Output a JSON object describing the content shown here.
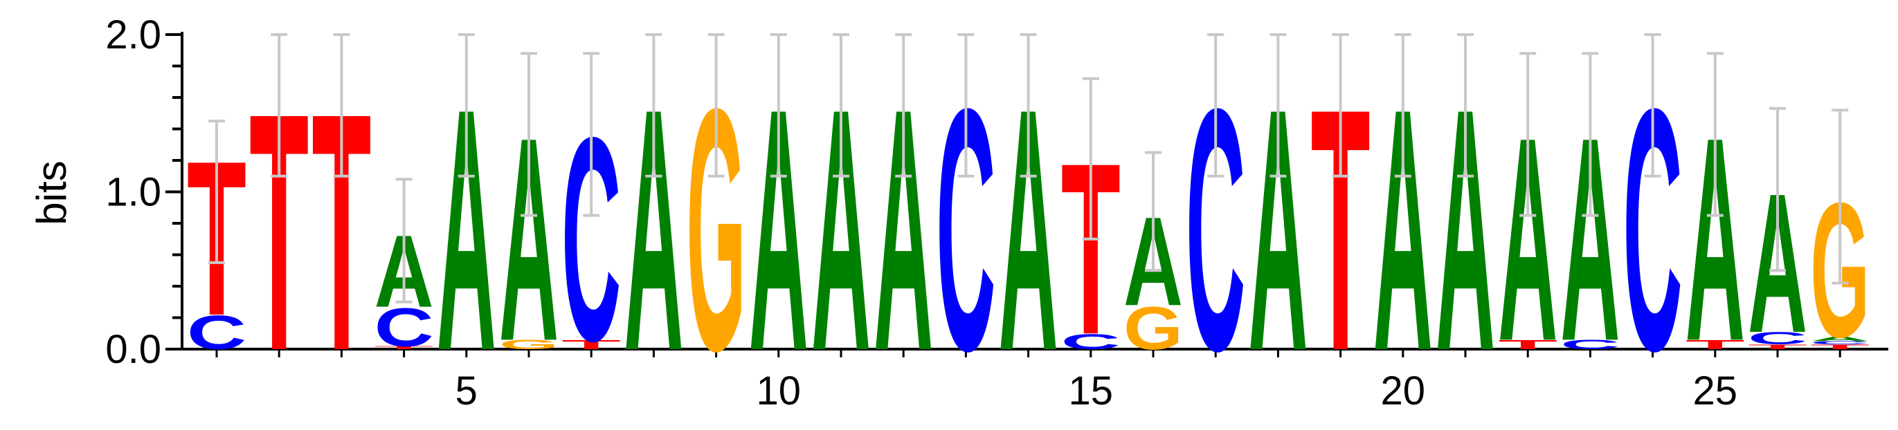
{
  "chart_data": {
    "type": "sequence-logo",
    "ylabel": "bits",
    "ylim": [
      0,
      2.0
    ],
    "yticks": [
      {
        "value": 0.0,
        "label": "0.0"
      },
      {
        "value": 1.0,
        "label": "1.0"
      },
      {
        "value": 2.0,
        "label": "2.0"
      }
    ],
    "xticks": [
      {
        "value": 5,
        "label": "5"
      },
      {
        "value": 10,
        "label": "10"
      },
      {
        "value": 15,
        "label": "15"
      },
      {
        "value": 20,
        "label": "20"
      },
      {
        "value": 25,
        "label": "25"
      }
    ],
    "positions_count": 27,
    "colors": {
      "A": "#008000",
      "C": "#0000ff",
      "G": "#ffa500",
      "T": "#ff0000",
      "error_bar": "#c8c8c8",
      "axis": "#000000"
    },
    "columns": [
      {
        "position": 1,
        "stack": [
          {
            "letter": "C",
            "height": 0.22
          },
          {
            "letter": "T",
            "height": 1.01
          }
        ],
        "error": [
          0.55,
          1.45
        ]
      },
      {
        "position": 2,
        "stack": [
          {
            "letter": "T",
            "height": 1.55
          }
        ],
        "error": [
          1.1,
          2.0
        ]
      },
      {
        "position": 3,
        "stack": [
          {
            "letter": "T",
            "height": 1.55
          }
        ],
        "error": [
          1.1,
          2.0
        ]
      },
      {
        "position": 4,
        "stack": [
          {
            "letter": "T",
            "height": 0.02
          },
          {
            "letter": "C",
            "height": 0.25
          },
          {
            "letter": "A",
            "height": 0.47
          }
        ],
        "error": [
          0.3,
          1.08
        ]
      },
      {
        "position": 5,
        "stack": [
          {
            "letter": "A",
            "height": 1.58
          }
        ],
        "error": [
          1.1,
          2.0
        ]
      },
      {
        "position": 6,
        "stack": [
          {
            "letter": "G",
            "height": 0.06
          },
          {
            "letter": "A",
            "height": 1.33
          }
        ],
        "error": [
          0.85,
          1.88
        ]
      },
      {
        "position": 7,
        "stack": [
          {
            "letter": "T",
            "height": 0.06
          },
          {
            "letter": "C",
            "height": 1.33
          }
        ],
        "error": [
          0.85,
          1.88
        ]
      },
      {
        "position": 8,
        "stack": [
          {
            "letter": "A",
            "height": 1.58
          }
        ],
        "error": [
          1.1,
          2.0
        ]
      },
      {
        "position": 9,
        "stack": [
          {
            "letter": "G",
            "height": 1.58
          }
        ],
        "error": [
          1.1,
          2.0
        ]
      },
      {
        "position": 10,
        "stack": [
          {
            "letter": "A",
            "height": 1.58
          }
        ],
        "error": [
          1.1,
          2.0
        ]
      },
      {
        "position": 11,
        "stack": [
          {
            "letter": "A",
            "height": 1.58
          }
        ],
        "error": [
          1.1,
          2.0
        ]
      },
      {
        "position": 12,
        "stack": [
          {
            "letter": "A",
            "height": 1.58
          }
        ],
        "error": [
          1.1,
          2.0
        ]
      },
      {
        "position": 13,
        "stack": [
          {
            "letter": "C",
            "height": 1.58
          }
        ],
        "error": [
          1.1,
          2.0
        ]
      },
      {
        "position": 14,
        "stack": [
          {
            "letter": "A",
            "height": 1.58
          }
        ],
        "error": [
          1.1,
          2.0
        ]
      },
      {
        "position": 15,
        "stack": [
          {
            "letter": "C",
            "height": 0.1
          },
          {
            "letter": "T",
            "height": 1.12
          }
        ],
        "error": [
          0.7,
          1.72
        ]
      },
      {
        "position": 16,
        "stack": [
          {
            "letter": "G",
            "height": 0.28
          },
          {
            "letter": "A",
            "height": 0.58
          }
        ],
        "error": [
          0.5,
          1.25
        ]
      },
      {
        "position": 17,
        "stack": [
          {
            "letter": "C",
            "height": 1.58
          }
        ],
        "error": [
          1.1,
          2.0
        ]
      },
      {
        "position": 18,
        "stack": [
          {
            "letter": "A",
            "height": 1.58
          }
        ],
        "error": [
          1.1,
          2.0
        ]
      },
      {
        "position": 19,
        "stack": [
          {
            "letter": "T",
            "height": 1.58
          }
        ],
        "error": [
          1.1,
          2.0
        ]
      },
      {
        "position": 20,
        "stack": [
          {
            "letter": "A",
            "height": 1.58
          }
        ],
        "error": [
          1.1,
          2.0
        ]
      },
      {
        "position": 21,
        "stack": [
          {
            "letter": "A",
            "height": 1.58
          }
        ],
        "error": [
          1.1,
          2.0
        ]
      },
      {
        "position": 22,
        "stack": [
          {
            "letter": "T",
            "height": 0.06
          },
          {
            "letter": "A",
            "height": 1.33
          }
        ],
        "error": [
          0.85,
          1.88
        ]
      },
      {
        "position": 23,
        "stack": [
          {
            "letter": "C",
            "height": 0.06
          },
          {
            "letter": "A",
            "height": 1.33
          }
        ],
        "error": [
          0.85,
          1.88
        ]
      },
      {
        "position": 24,
        "stack": [
          {
            "letter": "C",
            "height": 1.58
          }
        ],
        "error": [
          1.1,
          2.0
        ]
      },
      {
        "position": 25,
        "stack": [
          {
            "letter": "T",
            "height": 0.06
          },
          {
            "letter": "A",
            "height": 1.33
          }
        ],
        "error": [
          0.85,
          1.88
        ]
      },
      {
        "position": 26,
        "stack": [
          {
            "letter": "T",
            "height": 0.03
          },
          {
            "letter": "C",
            "height": 0.08
          },
          {
            "letter": "A",
            "height": 0.91
          }
        ],
        "error": [
          0.5,
          1.53
        ]
      },
      {
        "position": 27,
        "stack": [
          {
            "letter": "T",
            "height": 0.03
          },
          {
            "letter": "C",
            "height": 0.02
          },
          {
            "letter": "A",
            "height": 0.03
          },
          {
            "letter": "G",
            "height": 0.88
          }
        ],
        "error": [
          0.42,
          1.52
        ]
      }
    ]
  }
}
